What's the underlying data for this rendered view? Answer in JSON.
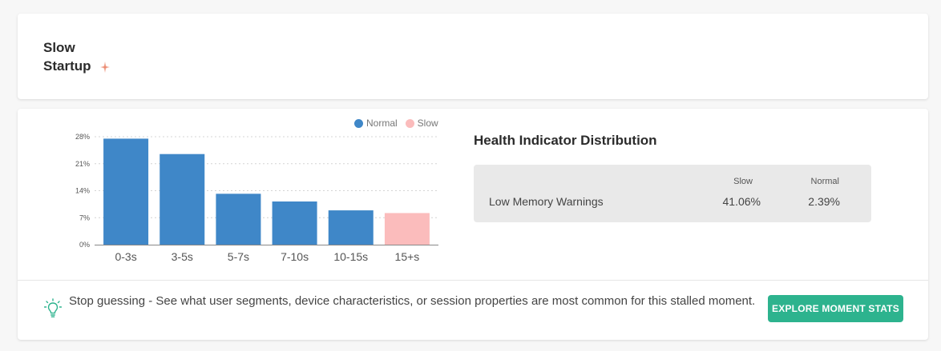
{
  "header": {
    "title_line1": "Slow",
    "title_line2": "Startup",
    "title_icon": "sparkle-icon"
  },
  "chart_data": {
    "type": "bar",
    "categories": [
      "0-3s",
      "3-5s",
      "5-7s",
      "7-10s",
      "10-15s",
      "15+s"
    ],
    "values": [
      27.5,
      23.5,
      13.2,
      11.2,
      8.9,
      8.2
    ],
    "bar_series": [
      "Normal",
      "Normal",
      "Normal",
      "Normal",
      "Normal",
      "Slow"
    ],
    "yticks": [
      "0%",
      "7%",
      "14%",
      "21%",
      "28%"
    ],
    "ylim": [
      0,
      28
    ],
    "legend": [
      {
        "name": "Normal",
        "color": "#3f87c8"
      },
      {
        "name": "Slow",
        "color": "#fbbcbc"
      }
    ],
    "legend_position": "top-right",
    "grid": true
  },
  "health": {
    "title": "Health Indicator Distribution",
    "col_slow": "Slow",
    "col_normal": "Normal",
    "rows": [
      {
        "label": "Low Memory Warnings",
        "slow": "41.06%",
        "normal": "2.39%"
      }
    ]
  },
  "footer": {
    "tip_icon": "lightbulb-icon",
    "tip_text": "Stop guessing - See what user segments, device characteristics, or session properties are most common for this stalled moment.",
    "button_label": "EXPLORE MOMENT STATS"
  },
  "colors": {
    "normal": "#3f87c8",
    "slow": "#fbbcbc",
    "accent": "#2db38e"
  }
}
